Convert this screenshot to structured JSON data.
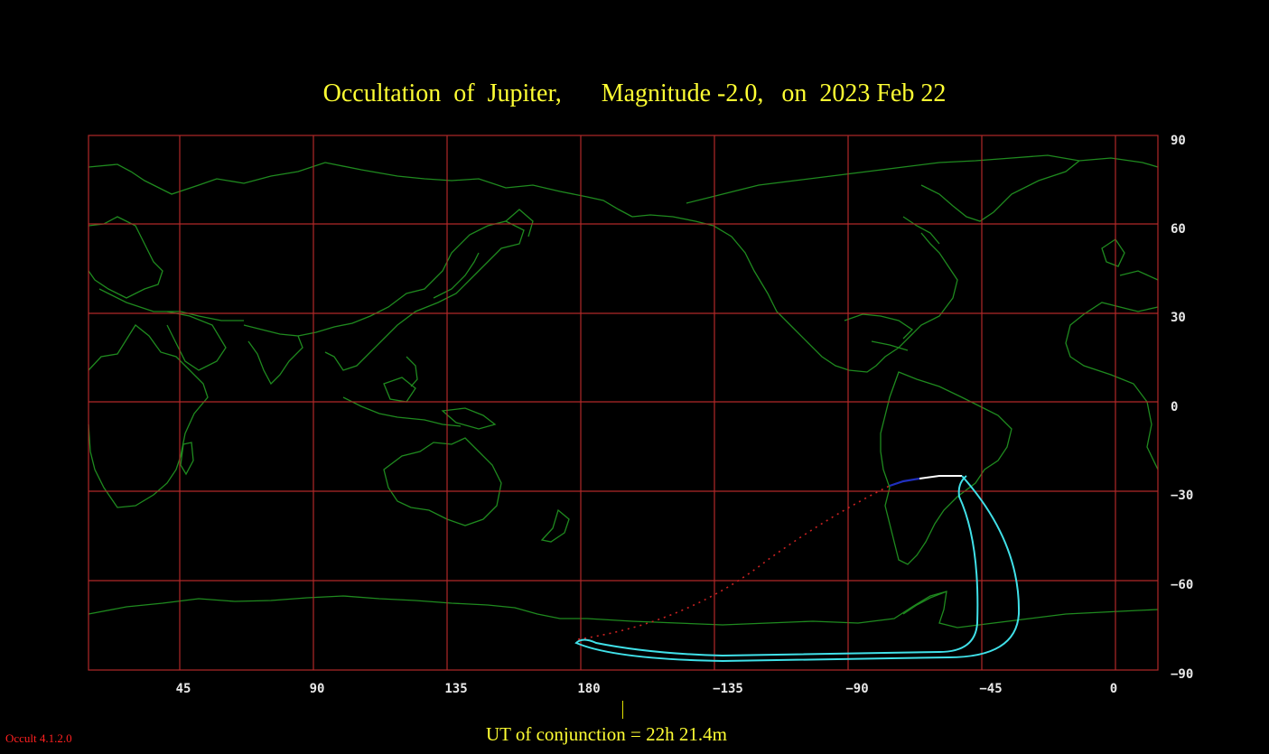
{
  "title": {
    "object_part": "Occultation  of  Jupiter,",
    "magnitude_part": "Magnitude -2.0,",
    "date_part": "on  2023 Feb 22"
  },
  "axes": {
    "latitude_labels": [
      "90",
      "60",
      "30",
      "0",
      "−30",
      "−60",
      "−90"
    ],
    "longitude_labels": [
      "45",
      "90",
      "135",
      "180",
      "−135",
      "−90",
      "−45",
      "0"
    ]
  },
  "conjunction": {
    "label": "UT of conjunction = 22h 21.4m"
  },
  "software_version": "Occult 4.1.2.0",
  "colors": {
    "background": "#000000",
    "grid": "#b02828",
    "coastline": "#1f8a1f",
    "title_text": "#ffff33",
    "path_outline": "#40e0e8",
    "path_daylight": "#ffffff",
    "path_twilight": "#2030c0",
    "path_below_horizon": "#cc2222",
    "version_text": "#ff2020",
    "axis_text": "#e8e8e8"
  }
}
